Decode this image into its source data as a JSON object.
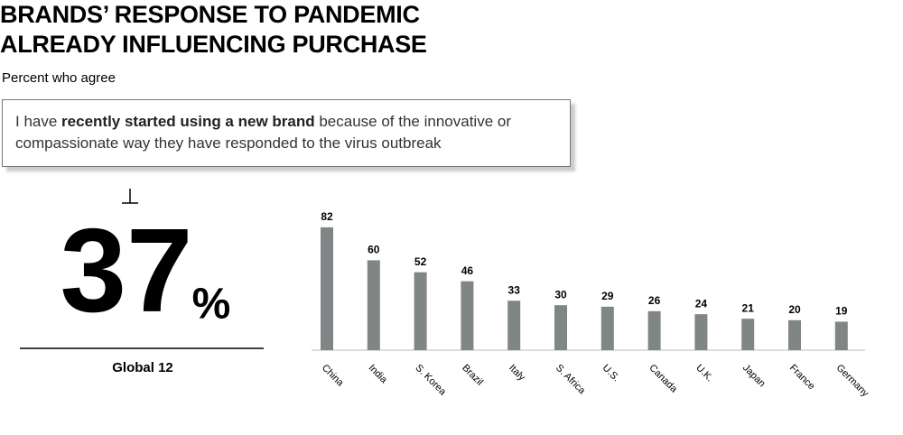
{
  "chart_data": {
    "type": "bar",
    "title_lines": [
      "BRANDS’ RESPONSE TO PANDEMIC",
      "ALREADY INFLUENCING PURCHASE"
    ],
    "subtitle": "Percent who agree",
    "statement": {
      "before": "I have ",
      "bold": "recently started using a new brand",
      "after": " because of the innovative or compassionate way they have responded to the virus outbreak"
    },
    "global": {
      "value": 37,
      "unit": "%",
      "label": "Global 12"
    },
    "categories": [
      "China",
      "India",
      "S. Korea",
      "Brazil",
      "Italy",
      "S. Africa",
      "U.S.",
      "Canada",
      "U.K.",
      "Japan",
      "France",
      "Germany"
    ],
    "values": [
      82,
      60,
      52,
      46,
      33,
      30,
      29,
      26,
      24,
      21,
      20,
      19
    ],
    "color": "#7f8685"
  }
}
